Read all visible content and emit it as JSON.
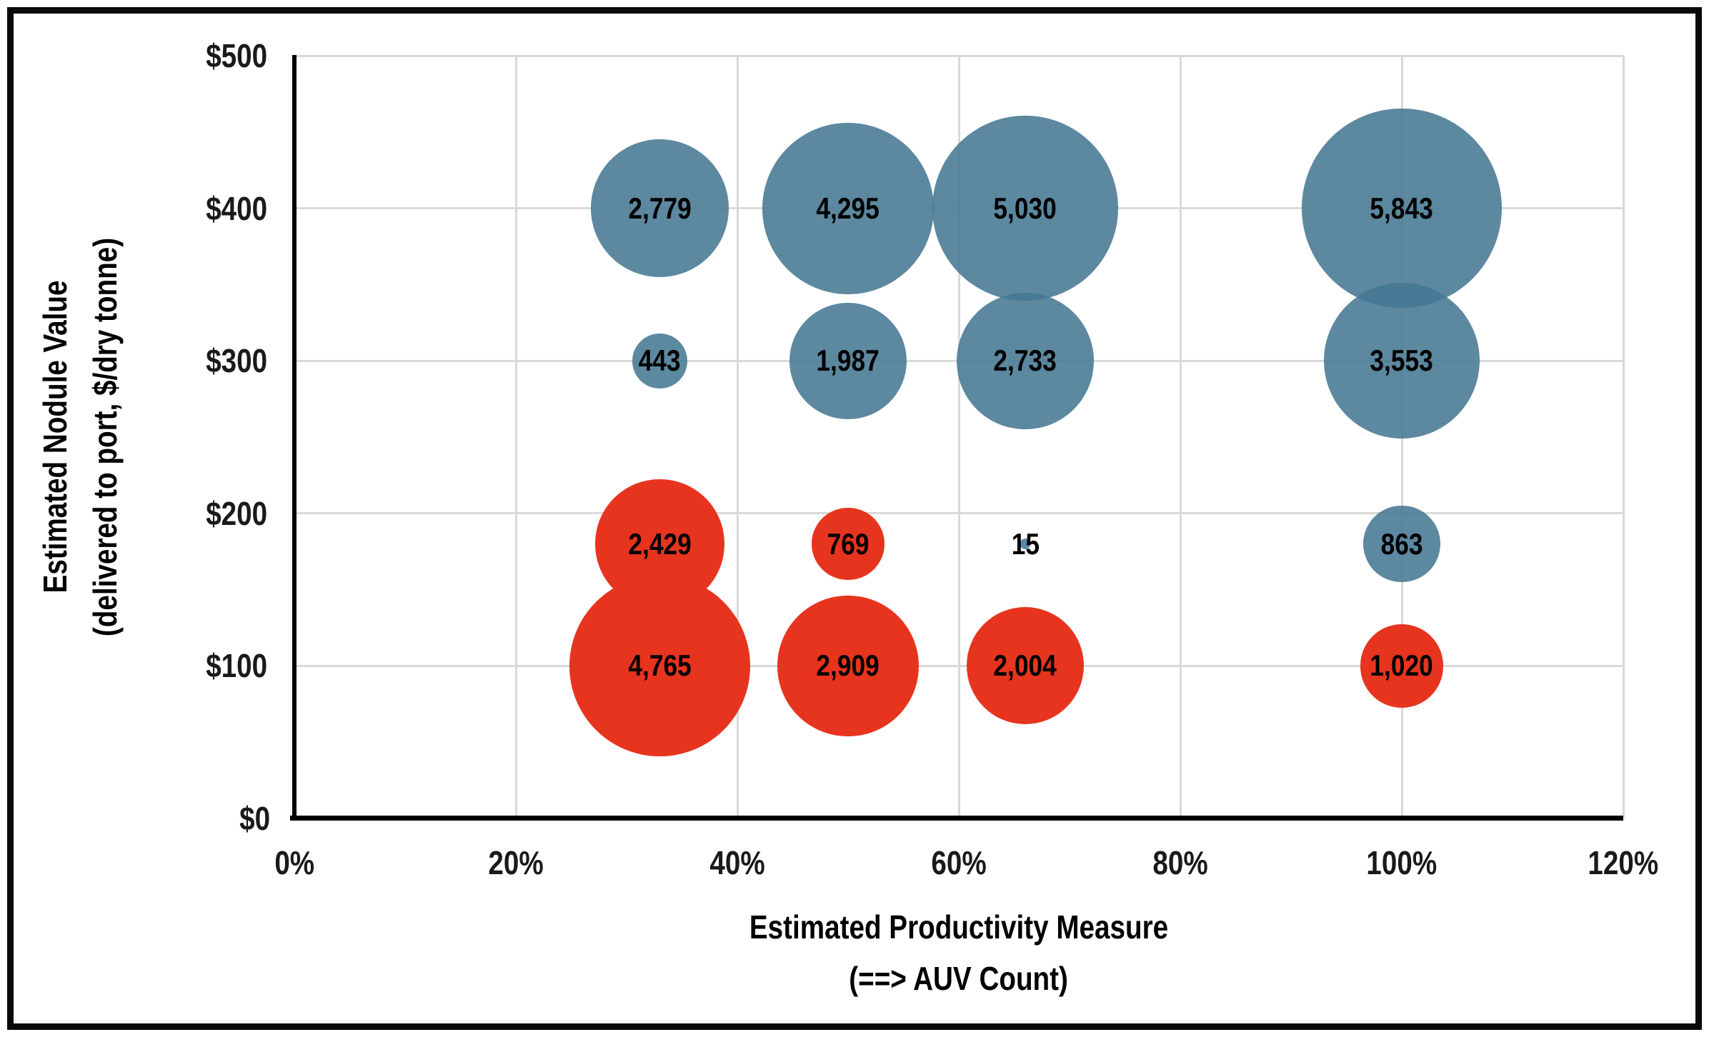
{
  "frame": {
    "border_color": "#0a0a0a",
    "background": "#ffffff"
  },
  "chart_data": {
    "type": "scatter",
    "subtype": "bubble",
    "title": "",
    "legend": "none",
    "grid": true,
    "gridline_color": "#d9d9d9",
    "x_axis": {
      "title_line1": "Estimated Productivity Measure",
      "title_line2": "(==> AUV Count)",
      "min": 0,
      "max": 120,
      "unit": "%",
      "ticks": [
        {
          "label": "0%",
          "value": 0
        },
        {
          "label": "20%",
          "value": 20
        },
        {
          "label": "40%",
          "value": 40
        },
        {
          "label": "60%",
          "value": 60
        },
        {
          "label": "80%",
          "value": 80
        },
        {
          "label": "100%",
          "value": 100
        },
        {
          "label": "120%",
          "value": 120
        }
      ]
    },
    "y_axis": {
      "title_line1": "Estimated Nodule Value",
      "title_line2": "(delivered to port, $/dry tonne)",
      "min": 0,
      "max": 500,
      "unit": "$/dry tonne",
      "ticks": [
        {
          "label": "$0",
          "value": 0
        },
        {
          "label": "$100",
          "value": 100
        },
        {
          "label": "$200",
          "value": 200
        },
        {
          "label": "$300",
          "value": 300
        },
        {
          "label": "$400",
          "value": 400
        },
        {
          "label": "$500",
          "value": 500
        }
      ]
    },
    "series": [
      {
        "name": "blue-series",
        "color": "#457793",
        "opacity": 0.88,
        "points": [
          {
            "x_pct": 33,
            "y_usd": 400,
            "value": 2779,
            "label": "2,779"
          },
          {
            "x_pct": 50,
            "y_usd": 400,
            "value": 4295,
            "label": "4,295"
          },
          {
            "x_pct": 66,
            "y_usd": 400,
            "value": 5030,
            "label": "5,030"
          },
          {
            "x_pct": 100,
            "y_usd": 400,
            "value": 5843,
            "label": "5,843"
          },
          {
            "x_pct": 33,
            "y_usd": 300,
            "value": 443,
            "label": "443"
          },
          {
            "x_pct": 50,
            "y_usd": 300,
            "value": 1987,
            "label": "1,987"
          },
          {
            "x_pct": 66,
            "y_usd": 300,
            "value": 2733,
            "label": "2,733"
          },
          {
            "x_pct": 100,
            "y_usd": 300,
            "value": 3553,
            "label": "3,553"
          },
          {
            "x_pct": 66,
            "y_usd": 180,
            "value": 15,
            "label": "15"
          },
          {
            "x_pct": 100,
            "y_usd": 180,
            "value": 863,
            "label": "863"
          }
        ]
      },
      {
        "name": "red-series",
        "color": "#e7341f",
        "opacity": 1,
        "points": [
          {
            "x_pct": 33,
            "y_usd": 180,
            "value": 2429,
            "label": "2,429"
          },
          {
            "x_pct": 50,
            "y_usd": 180,
            "value": 769,
            "label": "769"
          },
          {
            "x_pct": 33,
            "y_usd": 100,
            "value": 4765,
            "label": "4,765"
          },
          {
            "x_pct": 50,
            "y_usd": 100,
            "value": 2909,
            "label": "2,909"
          },
          {
            "x_pct": 66,
            "y_usd": 100,
            "value": 2004,
            "label": "2,004"
          },
          {
            "x_pct": 100,
            "y_usd": 100,
            "value": 1020,
            "label": "1,020"
          }
        ]
      }
    ]
  }
}
